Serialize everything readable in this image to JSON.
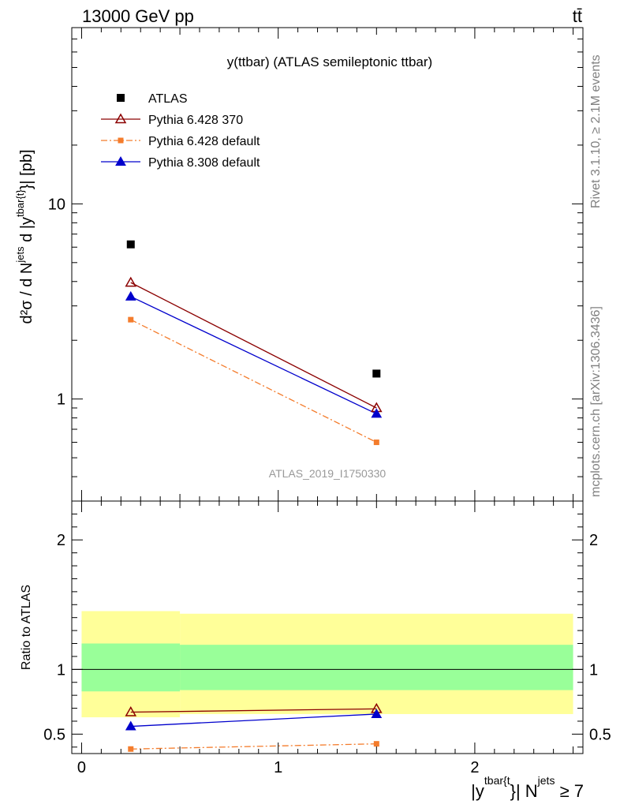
{
  "header": {
    "left": "13000 GeV pp",
    "right": "tt̄"
  },
  "side_labels": {
    "rivet": "Rivet 3.1.10, ≥ 2.1M events",
    "mcplots": "mcplots.cern.ch [arXiv:1306.3436]"
  },
  "chart_data": [
    {
      "type": "scatter",
      "title": "y(ttbar) (ATLAS semileptonic ttbar)",
      "watermark": "ATLAS_2019_I1750330",
      "ylabel": {
        "main": "d²σ / d N",
        "sup1": "jets",
        "mid": " d |y",
        "sup2": "tbar{t}",
        "tail": "}| [pb]"
      },
      "yscale": "log",
      "xlim": [
        -0.05,
        2.55
      ],
      "ylim": [
        0.3,
        80
      ],
      "ytick_labels": [
        "1",
        "10"
      ],
      "ytick_values": [
        1,
        10
      ],
      "legend_position": "top-left",
      "series": [
        {
          "name": "ATLAS",
          "marker": "square",
          "color": "#000000",
          "x": [
            0.25,
            1.5
          ],
          "y": [
            6.2,
            1.35
          ]
        },
        {
          "name": "Pythia 6.428 370",
          "marker": "triangle-open",
          "color": "#8b0000",
          "line": "solid",
          "x": [
            0.25,
            1.5
          ],
          "y": [
            3.95,
            0.9
          ]
        },
        {
          "name": "Pythia 6.428 default",
          "marker": "square-small",
          "color": "#f47c2c",
          "line": "dashdot",
          "x": [
            0.25,
            1.5
          ],
          "y": [
            2.55,
            0.6
          ]
        },
        {
          "name": "Pythia 8.308 default",
          "marker": "triangle",
          "color": "#0000cc",
          "line": "solid",
          "x": [
            0.25,
            1.5
          ],
          "y": [
            3.35,
            0.84
          ]
        }
      ]
    },
    {
      "type": "scatter",
      "ylabel": "Ratio to ATLAS",
      "xlabel": {
        "a": "|y",
        "sup1": "tbar{t",
        "b": "}| N",
        "sup2": "jets",
        "c": " ≥ 7"
      },
      "xlim": [
        -0.05,
        2.55
      ],
      "ylim": [
        0.35,
        2.3
      ],
      "xtick_labels": [
        "0",
        "1",
        "2"
      ],
      "xtick_values": [
        0,
        1,
        2
      ],
      "ytick_labels": [
        "0.5",
        "1",
        "2"
      ],
      "ytick_values": [
        0.5,
        1,
        2
      ],
      "bands": [
        {
          "x0": 0.0,
          "x1": 0.5,
          "yellow": [
            0.63,
            1.45
          ],
          "green": [
            0.83,
            1.2
          ]
        },
        {
          "x0": 0.5,
          "x1": 2.5,
          "yellow": [
            0.655,
            1.43
          ],
          "green": [
            0.84,
            1.19
          ]
        }
      ],
      "series": [
        {
          "name": "Pythia 6.428 370",
          "marker": "triangle-open",
          "color": "#8b0000",
          "line": "solid",
          "x": [
            0.25,
            1.5
          ],
          "y": [
            0.67,
            0.695
          ]
        },
        {
          "name": "Pythia 6.428 default",
          "marker": "square-small",
          "color": "#f47c2c",
          "line": "dashdot",
          "x": [
            0.25,
            1.5
          ],
          "y": [
            0.385,
            0.425
          ]
        },
        {
          "name": "Pythia 8.308 default",
          "marker": "triangle",
          "color": "#0000cc",
          "line": "solid",
          "x": [
            0.25,
            1.5
          ],
          "y": [
            0.56,
            0.655
          ]
        }
      ]
    }
  ]
}
